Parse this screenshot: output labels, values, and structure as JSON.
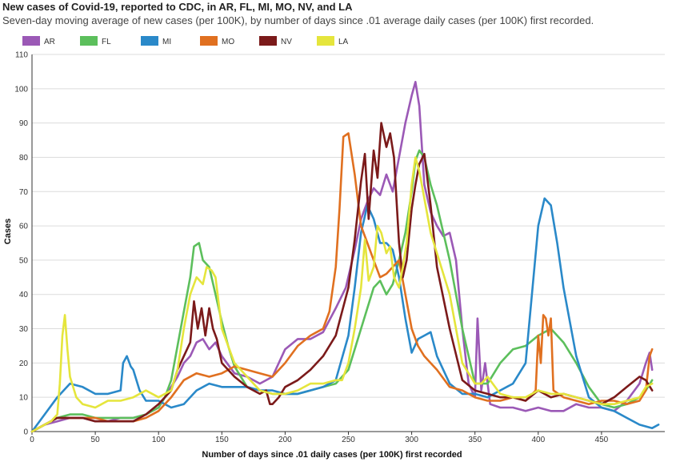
{
  "header": {
    "title": "New cases of Covid-19, reported to CDC, in AR, FL, MI, MO, NV, and LA",
    "subtitle": "Seven-day moving average of new cases (per 100K), by number of days since .01 average daily cases (per 100K) first recorded."
  },
  "chart_data": {
    "type": "line",
    "xlabel": "Number of days since .01 daily cases (per 100K) first recorded",
    "ylabel": "Cases",
    "xlim": [
      0,
      500
    ],
    "ylim": [
      0,
      110
    ],
    "xticks": [
      "0",
      "50",
      "100",
      "150",
      "200",
      "250",
      "300",
      "350",
      "400",
      "450"
    ],
    "yticks": [
      "0",
      "10",
      "20",
      "30",
      "40",
      "50",
      "60",
      "70",
      "80",
      "90",
      "100",
      "110"
    ],
    "grid": "horizontal",
    "legend": "top",
    "series": [
      {
        "name": "AR",
        "color": "#9b59b6",
        "x": [
          0,
          5,
          10,
          20,
          30,
          40,
          50,
          60,
          70,
          80,
          90,
          100,
          110,
          115,
          120,
          125,
          130,
          135,
          140,
          145,
          150,
          160,
          170,
          180,
          190,
          200,
          210,
          220,
          230,
          240,
          248,
          255,
          260,
          265,
          270,
          275,
          280,
          285,
          290,
          295,
          300,
          303,
          306,
          310,
          315,
          320,
          325,
          330,
          335,
          340,
          345,
          350,
          352,
          355,
          358,
          362,
          370,
          380,
          390,
          400,
          410,
          420,
          430,
          440,
          450,
          460,
          470,
          480,
          485,
          488,
          490
        ],
        "y": [
          0,
          1,
          2,
          3,
          4,
          4,
          3,
          3,
          4,
          4,
          5,
          7,
          13,
          16,
          20,
          22,
          26,
          27,
          24,
          26,
          22,
          17,
          16,
          14,
          16,
          24,
          27,
          27,
          29,
          36,
          42,
          53,
          62,
          67,
          71,
          69,
          75,
          70,
          80,
          90,
          98,
          102,
          95,
          72,
          64,
          60,
          57,
          58,
          50,
          30,
          14,
          10,
          33,
          12,
          20,
          8,
          7,
          7,
          6,
          7,
          6,
          6,
          8,
          7,
          7,
          6,
          9,
          14,
          20,
          23,
          18
        ]
      },
      {
        "name": "FL",
        "color": "#5cbf5c",
        "x": [
          0,
          10,
          20,
          30,
          40,
          50,
          60,
          70,
          80,
          90,
          100,
          105,
          110,
          115,
          120,
          125,
          128,
          132,
          135,
          140,
          145,
          150,
          155,
          160,
          170,
          180,
          190,
          200,
          210,
          220,
          230,
          240,
          250,
          255,
          260,
          265,
          270,
          275,
          280,
          285,
          290,
          295,
          300,
          303,
          306,
          310,
          315,
          320,
          330,
          340,
          350,
          360,
          370,
          380,
          390,
          400,
          410,
          420,
          430,
          440,
          450,
          460,
          470,
          480,
          485,
          490
        ],
        "y": [
          0,
          2,
          4,
          5,
          5,
          4,
          4,
          4,
          4,
          5,
          7,
          10,
          15,
          25,
          35,
          45,
          54,
          55,
          50,
          48,
          40,
          32,
          25,
          19,
          13,
          12,
          11,
          11,
          11,
          12,
          13,
          14,
          18,
          24,
          30,
          36,
          42,
          44,
          40,
          43,
          50,
          58,
          70,
          79,
          82,
          80,
          72,
          66,
          50,
          30,
          14,
          14,
          20,
          24,
          25,
          28,
          30,
          26,
          20,
          13,
          8,
          7,
          8,
          10,
          12,
          15
        ]
      },
      {
        "name": "MI",
        "color": "#2a89c9",
        "x": [
          0,
          10,
          20,
          30,
          40,
          50,
          60,
          70,
          72,
          75,
          78,
          80,
          85,
          90,
          100,
          110,
          120,
          130,
          140,
          150,
          160,
          170,
          180,
          190,
          200,
          210,
          220,
          230,
          240,
          250,
          255,
          260,
          265,
          270,
          275,
          280,
          285,
          290,
          295,
          300,
          305,
          310,
          315,
          320,
          330,
          340,
          350,
          360,
          370,
          380,
          390,
          395,
          400,
          405,
          410,
          415,
          420,
          430,
          440,
          450,
          460,
          470,
          480,
          490,
          495
        ],
        "y": [
          0,
          5,
          10,
          14,
          13,
          11,
          11,
          12,
          20,
          22,
          19,
          18,
          12,
          9,
          9,
          7,
          8,
          12,
          14,
          13,
          13,
          13,
          12,
          12,
          11,
          11,
          12,
          13,
          15,
          28,
          42,
          58,
          66,
          62,
          55,
          55,
          53,
          45,
          33,
          23,
          27,
          28,
          29,
          22,
          14,
          11,
          11,
          10,
          12,
          14,
          20,
          40,
          60,
          68,
          66,
          55,
          42,
          22,
          10,
          7,
          6,
          4,
          2,
          1,
          2
        ]
      },
      {
        "name": "MO",
        "color": "#e07020",
        "x": [
          0,
          10,
          20,
          30,
          40,
          50,
          60,
          70,
          80,
          90,
          100,
          110,
          120,
          130,
          140,
          150,
          160,
          170,
          180,
          190,
          200,
          210,
          220,
          225,
          230,
          235,
          240,
          243,
          246,
          250,
          255,
          260,
          265,
          270,
          275,
          280,
          285,
          290,
          295,
          300,
          305,
          310,
          315,
          320,
          330,
          340,
          350,
          360,
          370,
          380,
          390,
          398,
          400,
          402,
          404,
          406,
          408,
          410,
          412,
          420,
          430,
          440,
          450,
          460,
          470,
          480,
          485,
          488,
          490
        ],
        "y": [
          0,
          2,
          4,
          4,
          4,
          4,
          3,
          3,
          3,
          4,
          6,
          10,
          15,
          17,
          16,
          17,
          19,
          18,
          17,
          16,
          20,
          25,
          28,
          29,
          30,
          35,
          48,
          65,
          86,
          87,
          75,
          60,
          55,
          50,
          45,
          46,
          48,
          50,
          40,
          30,
          25,
          22,
          20,
          18,
          13,
          12,
          10,
          9,
          9,
          10,
          9,
          12,
          28,
          20,
          34,
          33,
          28,
          33,
          12,
          10,
          9,
          8,
          9,
          9,
          8,
          9,
          12,
          22,
          24
        ]
      },
      {
        "name": "NV",
        "color": "#7b1a1a",
        "x": [
          0,
          10,
          20,
          30,
          40,
          50,
          60,
          70,
          80,
          90,
          100,
          110,
          115,
          120,
          125,
          128,
          131,
          134,
          137,
          140,
          143,
          146,
          150,
          160,
          170,
          180,
          185,
          188,
          190,
          195,
          200,
          210,
          220,
          230,
          240,
          250,
          255,
          260,
          263,
          266,
          270,
          273,
          276,
          280,
          283,
          286,
          290,
          293,
          296,
          300,
          303,
          306,
          310,
          315,
          320,
          330,
          340,
          350,
          360,
          370,
          380,
          390,
          400,
          410,
          420,
          430,
          440,
          450,
          460,
          470,
          480,
          485,
          490
        ],
        "y": [
          0,
          2,
          4,
          4,
          4,
          3,
          3,
          3,
          3,
          5,
          8,
          12,
          18,
          22,
          26,
          38,
          30,
          36,
          28,
          36,
          30,
          27,
          20,
          16,
          13,
          11,
          12,
          8,
          8,
          10,
          13,
          15,
          18,
          22,
          28,
          42,
          56,
          73,
          81,
          62,
          82,
          74,
          90,
          83,
          87,
          80,
          55,
          45,
          50,
          65,
          72,
          78,
          81,
          66,
          48,
          30,
          15,
          12,
          11,
          10,
          10,
          9,
          12,
          10,
          11,
          10,
          9,
          8,
          10,
          13,
          16,
          15,
          12
        ]
      },
      {
        "name": "LA",
        "color": "#e5e53c",
        "x": [
          0,
          10,
          15,
          20,
          22,
          24,
          26,
          28,
          30,
          35,
          40,
          50,
          60,
          70,
          80,
          90,
          100,
          110,
          115,
          120,
          125,
          130,
          135,
          138,
          142,
          145,
          150,
          155,
          160,
          170,
          180,
          190,
          200,
          210,
          220,
          230,
          240,
          245,
          250,
          255,
          260,
          263,
          266,
          270,
          273,
          276,
          280,
          283,
          286,
          290,
          293,
          296,
          300,
          303,
          306,
          310,
          315,
          320,
          330,
          340,
          350,
          355,
          360,
          370,
          380,
          390,
          400,
          410,
          420,
          430,
          440,
          450,
          460,
          470,
          480,
          485,
          490
        ],
        "y": [
          0,
          2,
          3,
          5,
          14,
          28,
          34,
          24,
          16,
          10,
          8,
          7,
          9,
          9,
          10,
          12,
          10,
          12,
          18,
          30,
          40,
          45,
          43,
          48,
          47,
          45,
          30,
          25,
          20,
          16,
          12,
          11,
          11,
          12,
          14,
          14,
          15,
          15,
          20,
          30,
          42,
          56,
          44,
          48,
          60,
          58,
          52,
          54,
          45,
          42,
          48,
          55,
          72,
          80,
          76,
          68,
          58,
          52,
          40,
          20,
          14,
          14,
          16,
          11,
          10,
          10,
          12,
          11,
          11,
          10,
          9,
          8,
          8,
          9,
          10,
          13,
          14
        ]
      }
    ]
  }
}
